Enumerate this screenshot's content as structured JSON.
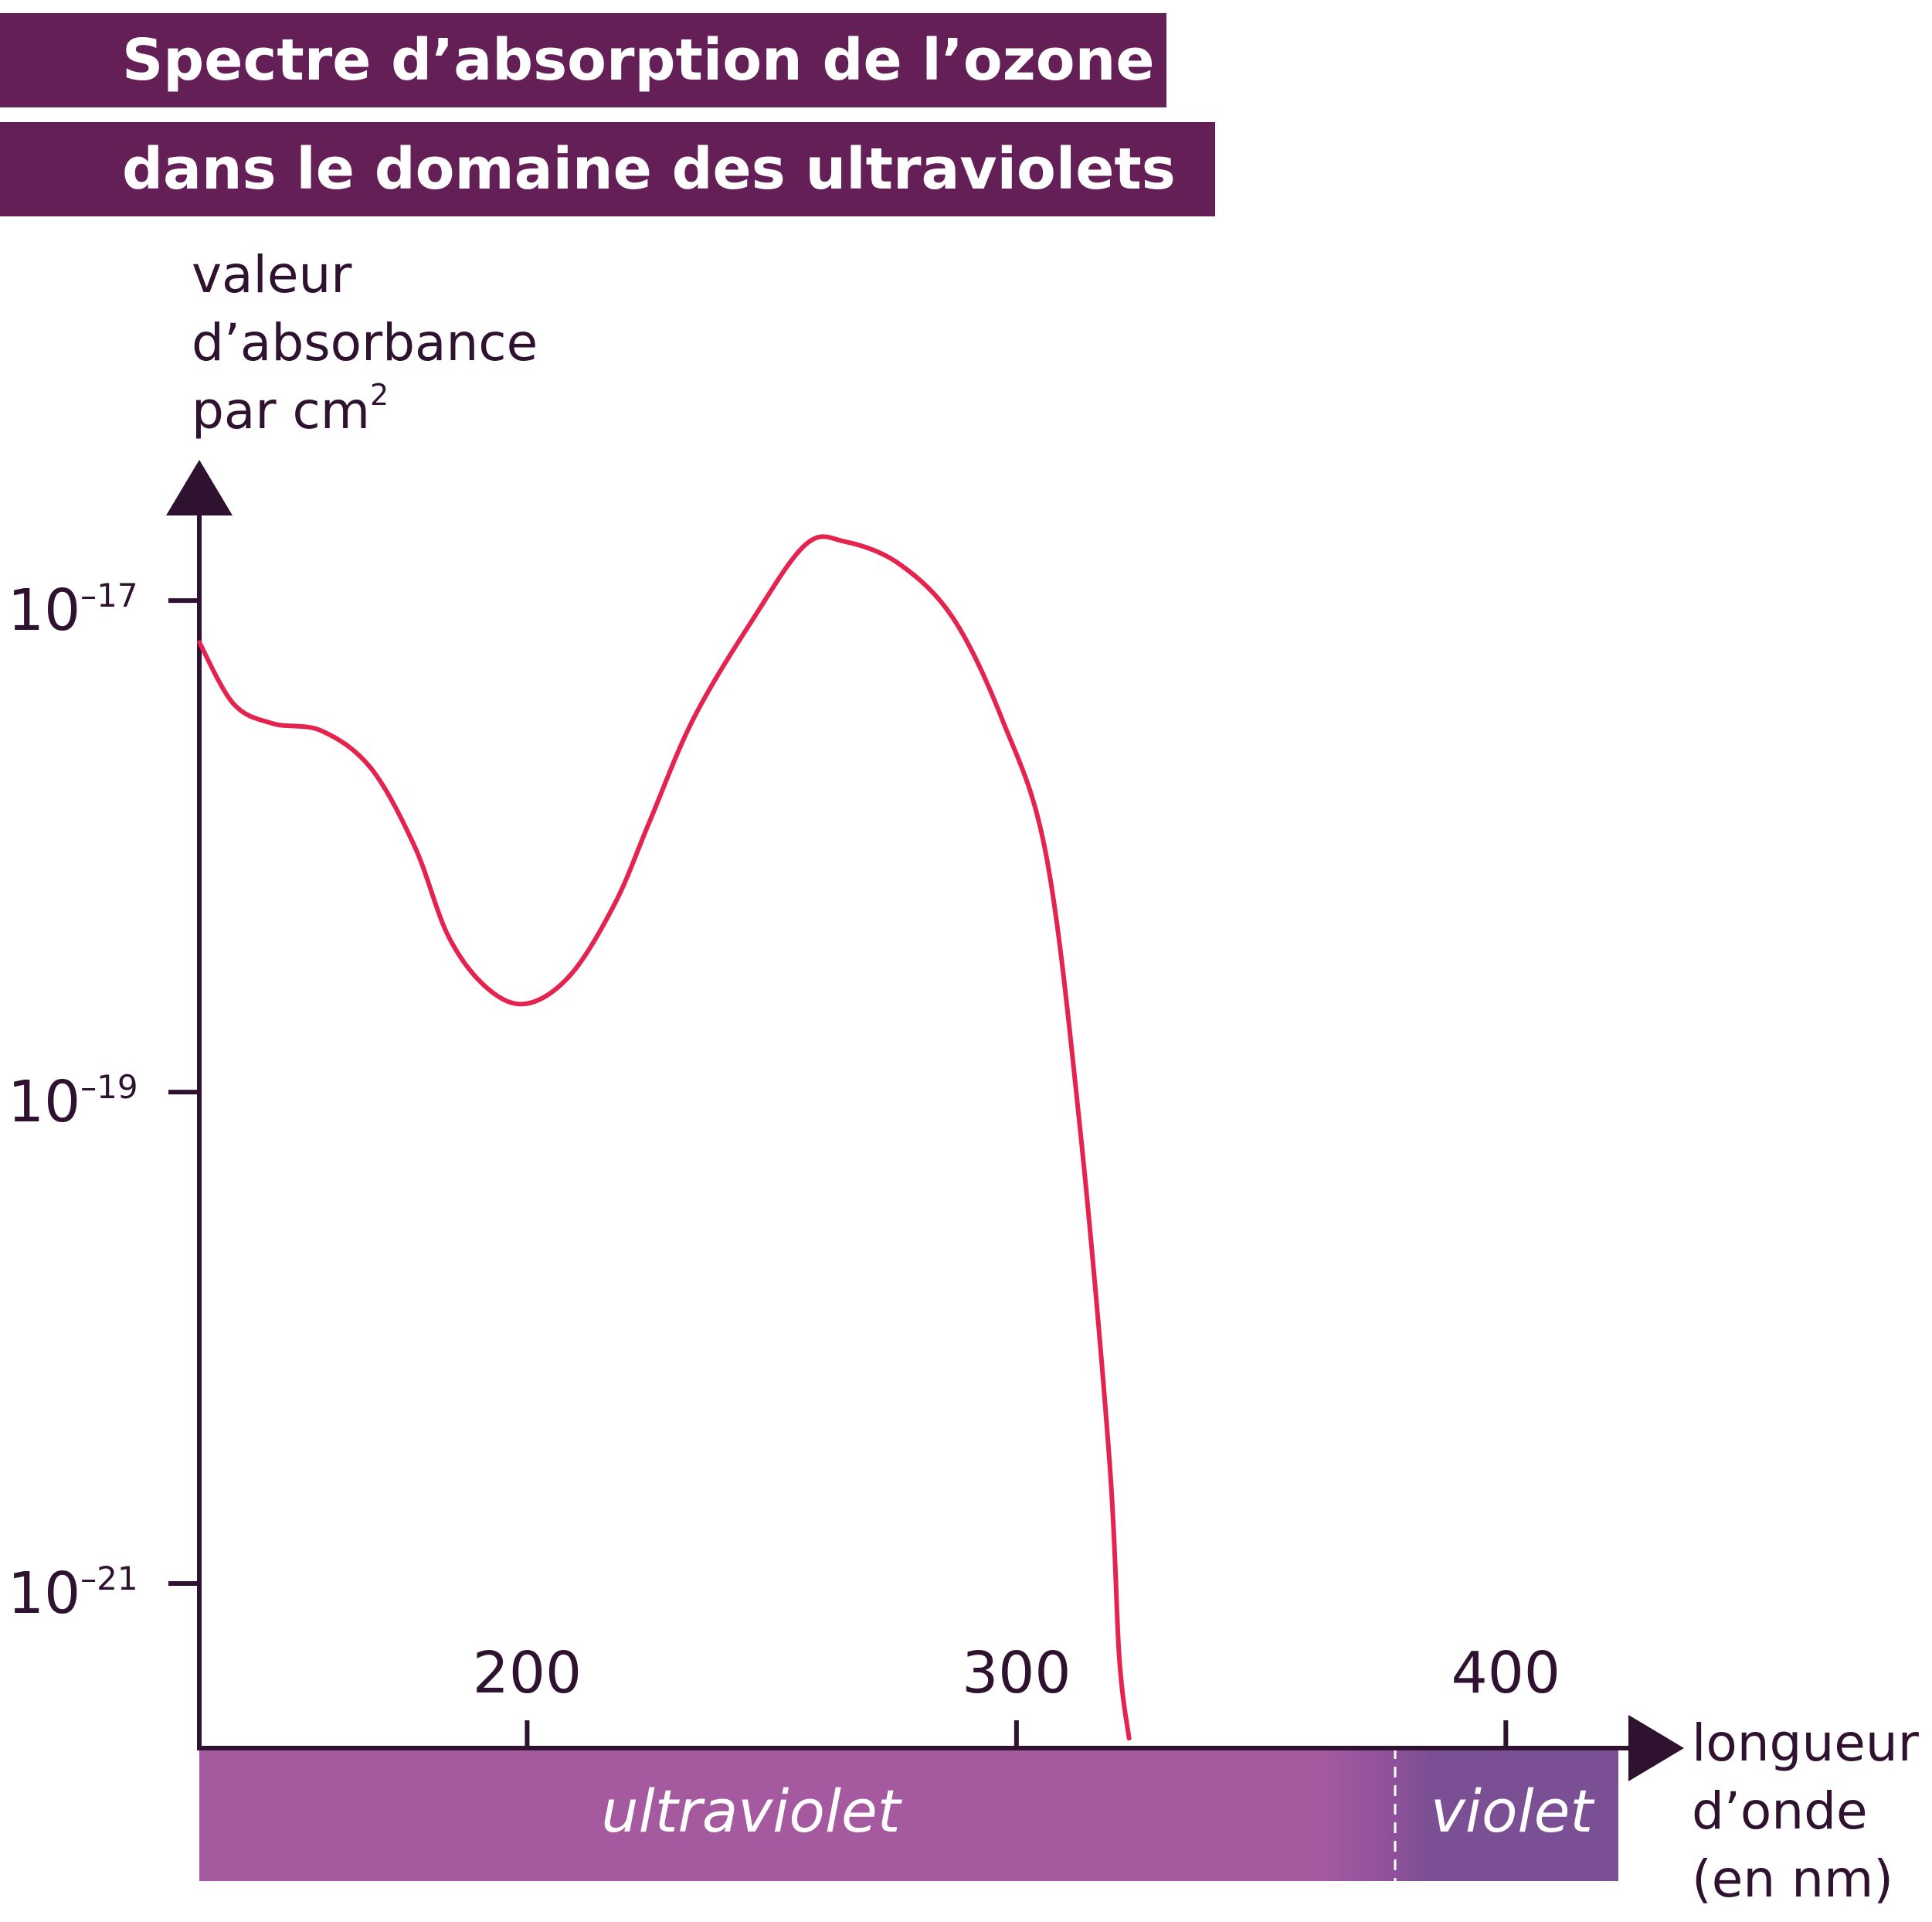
{
  "title_line1": "Spectre d’absorption de l’ozone",
  "title_line2": "dans le domaine des ultraviolets",
  "colors": {
    "banner": "#641f57",
    "axis": "#2e1230",
    "curve": "#e4244f",
    "band_ultraviolet": "#a55aa0",
    "band_violet": "#7a4f93"
  },
  "chart_data": {
    "type": "line",
    "title": "Spectre d’absorption de l’ozone dans le domaine des ultraviolets",
    "ylabel_lines": [
      "valeur",
      "d’absorbance",
      "par cm"
    ],
    "ylabel_superscript": "2",
    "xlabel_lines": [
      "longueur",
      "d’onde",
      "(en nm)"
    ],
    "x_scale": "linear",
    "y_scale": "log",
    "xlim": [
      133,
      423
    ],
    "ylim_log10": [
      -21.67,
      -16.6
    ],
    "x_ticks": [
      {
        "value": 200,
        "label": "200"
      },
      {
        "value": 300,
        "label": "300"
      },
      {
        "value": 400,
        "label": "400"
      }
    ],
    "y_ticks": [
      {
        "log10": -17,
        "base": "10",
        "exp": "–17"
      },
      {
        "log10": -19,
        "base": "10",
        "exp": "–19"
      },
      {
        "log10": -21,
        "base": "10",
        "exp": "–21"
      }
    ],
    "series": [
      {
        "points": [
          [
            133,
            -17.17
          ],
          [
            140,
            -17.42
          ],
          [
            148,
            -17.5
          ],
          [
            158,
            -17.53
          ],
          [
            168,
            -17.68
          ],
          [
            177,
            -18.0
          ],
          [
            184,
            -18.37
          ],
          [
            192,
            -18.58
          ],
          [
            200,
            -18.64
          ],
          [
            209,
            -18.52
          ],
          [
            218,
            -18.23
          ],
          [
            225,
            -17.9
          ],
          [
            234,
            -17.48
          ],
          [
            246,
            -17.08
          ],
          [
            257,
            -16.77
          ],
          [
            265,
            -16.76
          ],
          [
            276,
            -16.85
          ],
          [
            287,
            -17.07
          ],
          [
            297,
            -17.48
          ],
          [
            306,
            -18.03
          ],
          [
            313,
            -19.15
          ],
          [
            319,
            -20.5
          ],
          [
            321,
            -21.3
          ],
          [
            323,
            -21.63
          ]
        ]
      }
    ],
    "bands": [
      {
        "label": "ultraviolet",
        "x_from": 133,
        "x_to": 376
      },
      {
        "label": "violet",
        "x_from": 376,
        "x_to": 423
      }
    ],
    "grid": false,
    "legend": "none"
  }
}
